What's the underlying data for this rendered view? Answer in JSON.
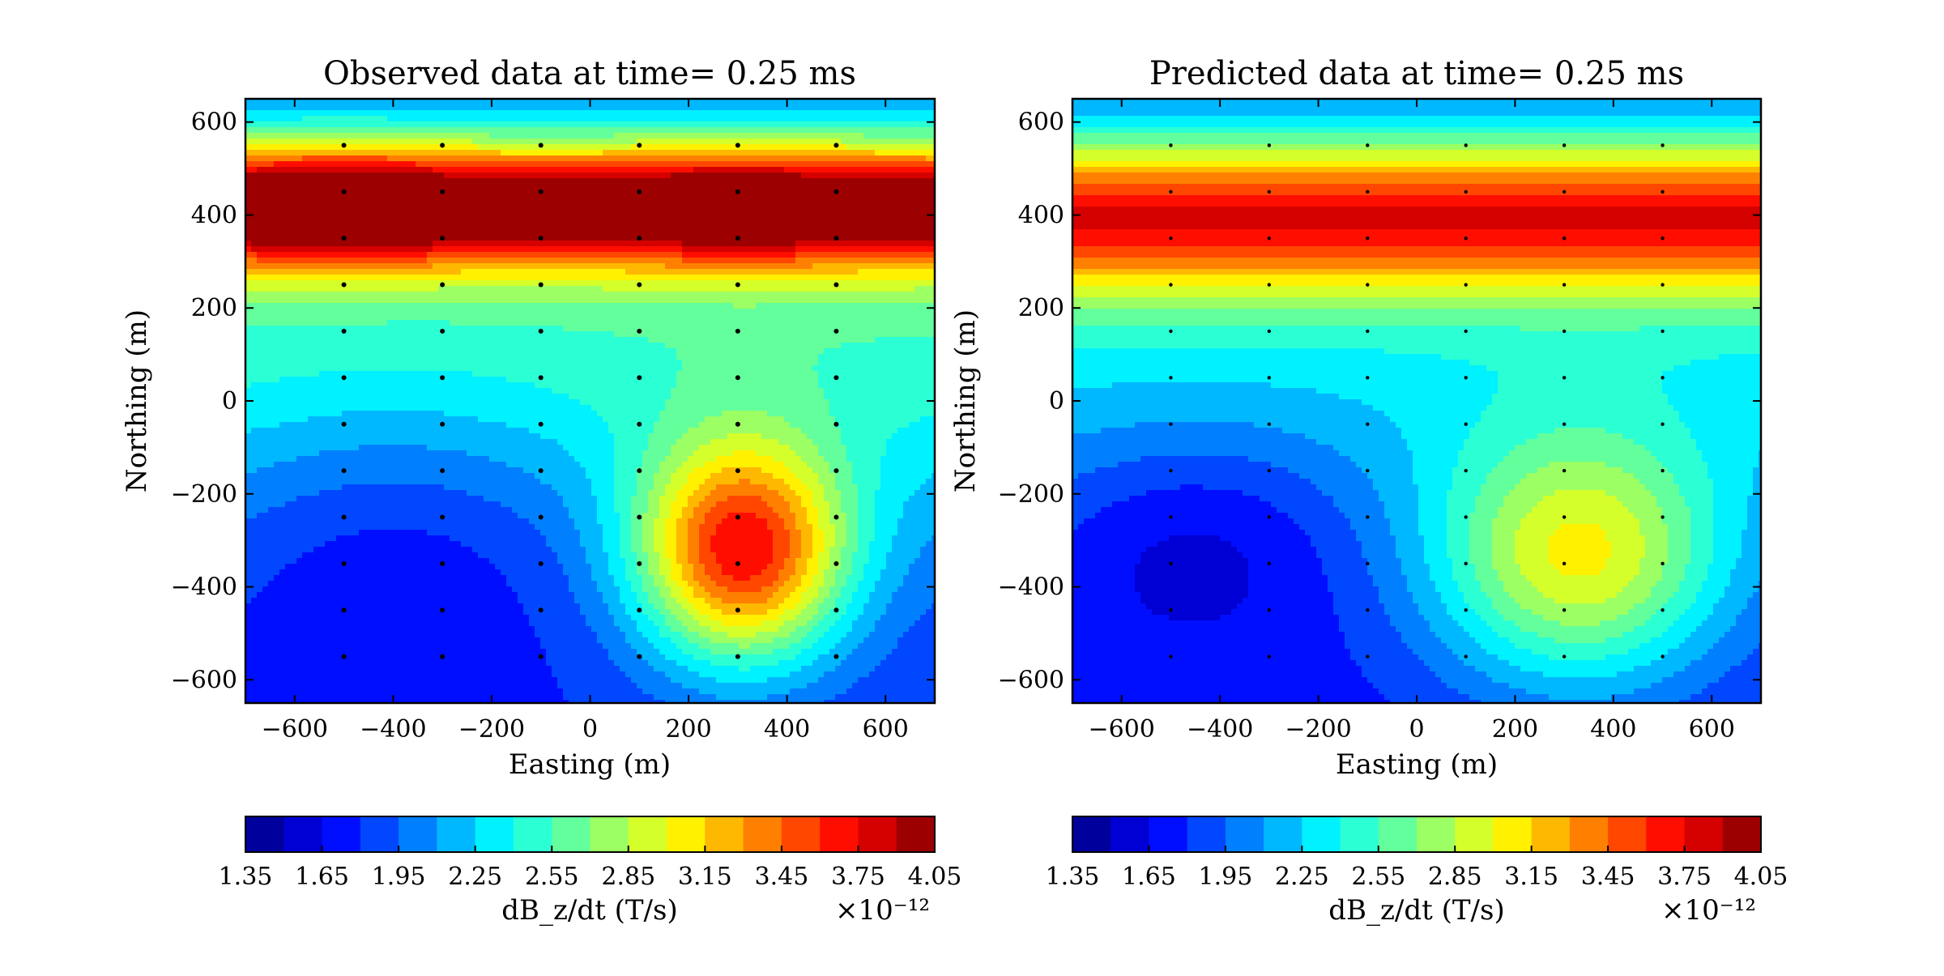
{
  "chart_data": [
    {
      "type": "contour",
      "title": "Observed data at time= 0.25 ms",
      "xlabel": "Easting (m)",
      "ylabel": "Northing (m)",
      "xlim": [
        -700,
        700
      ],
      "ylim": [
        -650,
        650
      ],
      "xticks": [
        "−600",
        "−400",
        "−200",
        "0",
        "200",
        "400",
        "600"
      ],
      "yticks": [
        "−600",
        "−400",
        "−200",
        "0",
        "200",
        "400",
        "600"
      ],
      "stations": {
        "x": [
          -500,
          -300,
          -100,
          100,
          300,
          500
        ],
        "y": [
          -550,
          -450,
          -350,
          -250,
          -150,
          -50,
          50,
          150,
          250,
          350,
          450,
          550
        ]
      },
      "field": {
        "background": 1.78,
        "bands": [
          {
            "y": 420,
            "height": 95,
            "amp": 1.95,
            "mod": [
              [
                -500,
                0.32
              ],
              [
                300,
                0.2
              ]
            ]
          },
          {
            "y": 175,
            "height": 320,
            "amp": 0.75,
            "mod": []
          }
        ],
        "lobes": [
          {
            "x": 310,
            "y": -330,
            "sx": 150,
            "sy": 165,
            "amp": 1.75
          },
          {
            "x": -400,
            "y": -260,
            "sx": 260,
            "sy": 230,
            "amp": -0.26
          }
        ]
      },
      "colorbar": {
        "label": "dB_z/dt (T/s)",
        "multiplier": "×10⁻¹²",
        "min": 1.35,
        "max": 4.05,
        "step": 0.15,
        "ticks": [
          "1.35",
          "1.65",
          "1.95",
          "2.25",
          "2.55",
          "2.85",
          "3.15",
          "3.45",
          "3.75",
          "4.05"
        ]
      }
    },
    {
      "type": "contour",
      "title": "Predicted data at time= 0.25 ms",
      "xlabel": "Easting (m)",
      "ylabel": "Northing (m)",
      "xlim": [
        -700,
        700
      ],
      "ylim": [
        -650,
        650
      ],
      "xticks": [
        "−600",
        "−400",
        "−200",
        "0",
        "200",
        "400",
        "600"
      ],
      "yticks": [
        "−600",
        "−400",
        "−200",
        "0",
        "200",
        "400",
        "600"
      ],
      "stations": {
        "x": [
          -500,
          -300,
          -100,
          100,
          300,
          500
        ],
        "y": [
          -550,
          -450,
          -350,
          -250,
          -150,
          -50,
          50,
          150,
          250,
          350,
          450,
          550
        ]
      },
      "field": {
        "background": 1.72,
        "bands": [
          {
            "y": 400,
            "height": 120,
            "amp": 1.6,
            "mod": []
          },
          {
            "y": 160,
            "height": 320,
            "amp": 0.6,
            "mod": []
          }
        ],
        "lobes": [
          {
            "x": 330,
            "y": -350,
            "sx": 210,
            "sy": 190,
            "amp": 1.15
          },
          {
            "x": -450,
            "y": -280,
            "sx": 220,
            "sy": 170,
            "amp": -0.3
          }
        ]
      },
      "colorbar": {
        "label": "dB_z/dt (T/s)",
        "multiplier": "×10⁻¹²",
        "min": 1.35,
        "max": 4.05,
        "step": 0.15,
        "ticks": [
          "1.35",
          "1.65",
          "1.95",
          "2.25",
          "2.55",
          "2.85",
          "3.15",
          "3.45",
          "3.75",
          "4.05"
        ]
      }
    }
  ]
}
